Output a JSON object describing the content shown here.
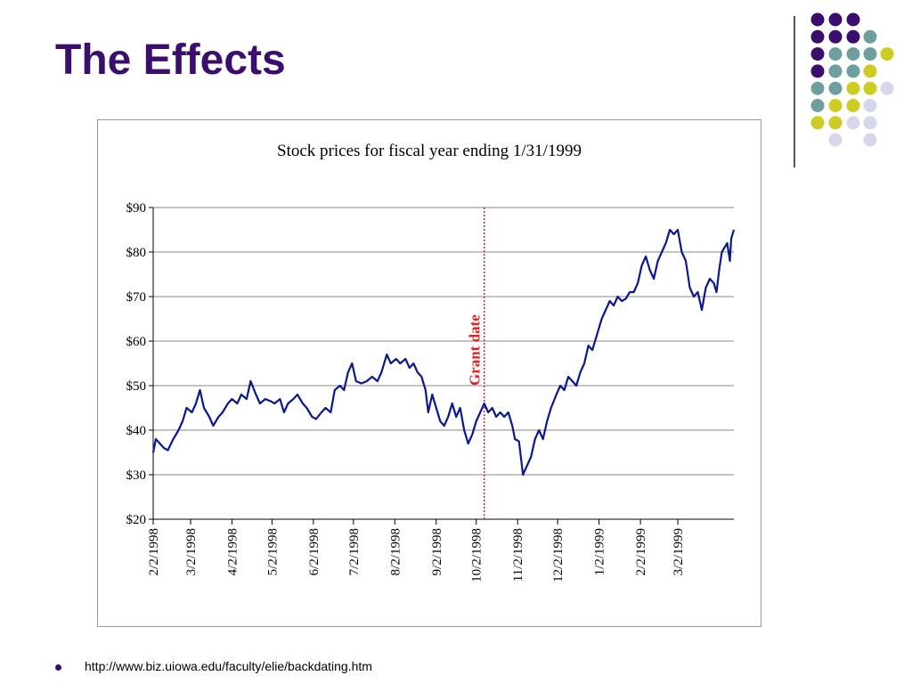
{
  "slide": {
    "title": "The Effects",
    "bullet": "http://www.biz.uiowa.edu/faculty/elie/backdating.htm",
    "colors": {
      "title": "#3b0e6e",
      "purple": "#3b0e6e",
      "teal": "#6f9e9e",
      "yellow": "#cccc22",
      "lavender": "#d7d7ea"
    }
  },
  "chart_data": {
    "type": "line",
    "title": "Stock prices for fiscal year ending 1/31/1999",
    "xlabel": "",
    "ylabel": "",
    "ylim": [
      20,
      90
    ],
    "yticks": [
      20,
      30,
      40,
      50,
      60,
      70,
      80,
      90
    ],
    "ytick_labels": [
      "$20",
      "$30",
      "$40",
      "$50",
      "$60",
      "$70",
      "$80",
      "$90"
    ],
    "x_ticks": [
      "2/2/1998",
      "3/2/1998",
      "4/2/1998",
      "5/2/1998",
      "6/2/1998",
      "7/2/1998",
      "8/2/1998",
      "9/2/1998",
      "10/2/1998",
      "11/2/1998",
      "12/2/1998",
      "1/2/1999",
      "2/2/1999",
      "3/2/1999"
    ],
    "xlim": [
      "1998-02-02",
      "1999-04-13"
    ],
    "grid": "horizontal",
    "line_color": "#0a1a8c",
    "annotation": {
      "label": "Grant date",
      "date": "1998-10-08",
      "color": "#e02020"
    },
    "series": [
      {
        "points": [
          [
            "1998-02-02",
            35
          ],
          [
            "1998-02-04",
            38
          ],
          [
            "1998-02-07",
            37
          ],
          [
            "1998-02-10",
            36
          ],
          [
            "1998-02-13",
            35.5
          ],
          [
            "1998-02-17",
            38
          ],
          [
            "1998-02-21",
            40
          ],
          [
            "1998-02-24",
            42
          ],
          [
            "1998-02-27",
            45
          ],
          [
            "1998-03-03",
            44
          ],
          [
            "1998-03-06",
            46
          ],
          [
            "1998-03-09",
            49
          ],
          [
            "1998-03-12",
            45
          ],
          [
            "1998-03-16",
            43
          ],
          [
            "1998-03-19",
            41
          ],
          [
            "1998-03-23",
            43
          ],
          [
            "1998-03-26",
            44
          ],
          [
            "1998-03-30",
            46
          ],
          [
            "1998-04-02",
            47
          ],
          [
            "1998-04-06",
            46
          ],
          [
            "1998-04-09",
            48
          ],
          [
            "1998-04-13",
            47
          ],
          [
            "1998-04-16",
            51
          ],
          [
            "1998-04-20",
            48
          ],
          [
            "1998-04-23",
            46
          ],
          [
            "1998-04-27",
            47
          ],
          [
            "1998-05-01",
            46.5
          ],
          [
            "1998-05-04",
            46
          ],
          [
            "1998-05-08",
            47
          ],
          [
            "1998-05-11",
            44
          ],
          [
            "1998-05-14",
            46
          ],
          [
            "1998-05-18",
            47
          ],
          [
            "1998-05-21",
            48
          ],
          [
            "1998-05-25",
            46
          ],
          [
            "1998-05-28",
            45
          ],
          [
            "1998-06-01",
            43
          ],
          [
            "1998-06-04",
            42.5
          ],
          [
            "1998-06-08",
            44
          ],
          [
            "1998-06-11",
            45
          ],
          [
            "1998-06-15",
            44
          ],
          [
            "1998-06-18",
            49
          ],
          [
            "1998-06-22",
            50
          ],
          [
            "1998-06-25",
            49
          ],
          [
            "1998-06-28",
            53
          ],
          [
            "1998-07-01",
            55
          ],
          [
            "1998-07-04",
            51
          ],
          [
            "1998-07-08",
            50.5
          ],
          [
            "1998-07-12",
            51
          ],
          [
            "1998-07-16",
            52
          ],
          [
            "1998-07-20",
            51
          ],
          [
            "1998-07-23",
            53
          ],
          [
            "1998-07-27",
            57
          ],
          [
            "1998-07-30",
            55
          ],
          [
            "1998-08-03",
            56
          ],
          [
            "1998-08-06",
            55
          ],
          [
            "1998-08-10",
            56
          ],
          [
            "1998-08-13",
            54
          ],
          [
            "1998-08-16",
            55
          ],
          [
            "1998-08-19",
            53
          ],
          [
            "1998-08-22",
            52
          ],
          [
            "1998-08-25",
            49
          ],
          [
            "1998-08-27",
            44
          ],
          [
            "1998-08-30",
            48
          ],
          [
            "1998-09-02",
            45
          ],
          [
            "1998-09-05",
            42
          ],
          [
            "1998-09-08",
            41
          ],
          [
            "1998-09-11",
            43
          ],
          [
            "1998-09-14",
            46
          ],
          [
            "1998-09-17",
            43
          ],
          [
            "1998-09-20",
            45
          ],
          [
            "1998-09-23",
            40
          ],
          [
            "1998-09-26",
            37
          ],
          [
            "1998-09-29",
            39
          ],
          [
            "1998-10-02",
            42
          ],
          [
            "1998-10-05",
            44
          ],
          [
            "1998-10-08",
            46
          ],
          [
            "1998-10-11",
            44
          ],
          [
            "1998-10-14",
            45
          ],
          [
            "1998-10-17",
            43
          ],
          [
            "1998-10-20",
            44
          ],
          [
            "1998-10-23",
            43
          ],
          [
            "1998-10-26",
            44
          ],
          [
            "1998-10-29",
            41
          ],
          [
            "1998-10-31",
            38
          ],
          [
            "1998-11-03",
            37.5
          ],
          [
            "1998-11-06",
            30
          ],
          [
            "1998-11-09",
            32
          ],
          [
            "1998-11-12",
            34
          ],
          [
            "1998-11-15",
            38
          ],
          [
            "1998-11-18",
            40
          ],
          [
            "1998-11-21",
            38
          ],
          [
            "1998-11-24",
            42
          ],
          [
            "1998-11-27",
            45
          ],
          [
            "1998-12-01",
            48
          ],
          [
            "1998-12-04",
            50
          ],
          [
            "1998-12-07",
            49
          ],
          [
            "1998-12-10",
            52
          ],
          [
            "1998-12-13",
            51
          ],
          [
            "1998-12-16",
            50
          ],
          [
            "1998-12-19",
            53
          ],
          [
            "1998-12-22",
            55
          ],
          [
            "1998-12-25",
            59
          ],
          [
            "1998-12-28",
            58
          ],
          [
            "1999-01-01",
            62
          ],
          [
            "1999-01-04",
            65
          ],
          [
            "1999-01-07",
            67
          ],
          [
            "1999-01-10",
            69
          ],
          [
            "1999-01-13",
            68
          ],
          [
            "1999-01-16",
            70
          ],
          [
            "1999-01-19",
            69
          ],
          [
            "1999-01-22",
            69.5
          ],
          [
            "1999-01-25",
            71
          ],
          [
            "1999-01-28",
            71
          ],
          [
            "1999-01-31",
            73
          ],
          [
            "1999-02-03",
            77
          ],
          [
            "1999-02-06",
            79
          ],
          [
            "1999-02-09",
            76
          ],
          [
            "1999-02-12",
            74
          ],
          [
            "1999-02-15",
            78
          ],
          [
            "1999-02-18",
            80
          ],
          [
            "1999-02-21",
            82
          ],
          [
            "1999-02-24",
            85
          ],
          [
            "1999-02-27",
            84
          ],
          [
            "1999-03-02",
            85
          ],
          [
            "1999-03-05",
            80
          ],
          [
            "1999-03-08",
            78
          ],
          [
            "1999-03-11",
            72
          ],
          [
            "1999-03-14",
            70
          ],
          [
            "1999-03-17",
            71
          ],
          [
            "1999-03-20",
            67
          ],
          [
            "1999-03-23",
            72
          ],
          [
            "1999-03-26",
            74
          ],
          [
            "1999-03-29",
            73
          ],
          [
            "1999-03-31",
            71
          ],
          [
            "1999-04-02",
            76
          ],
          [
            "1999-04-04",
            80
          ],
          [
            "1999-04-06",
            81
          ],
          [
            "1999-04-08",
            82
          ],
          [
            "1999-04-10",
            78
          ],
          [
            "1999-04-11",
            83
          ],
          [
            "1999-04-13",
            85
          ]
        ]
      }
    ]
  }
}
